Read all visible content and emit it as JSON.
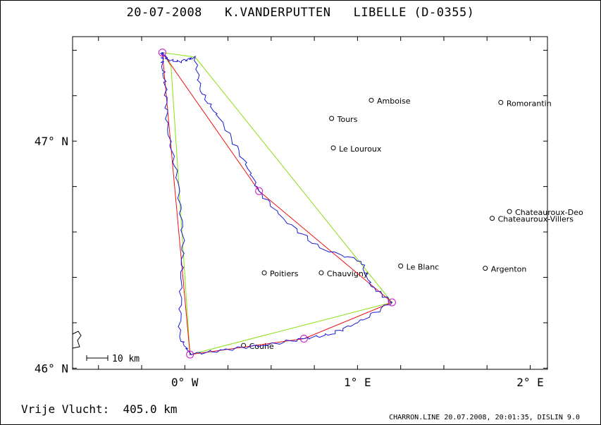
{
  "header": {
    "date": "20-07-2008",
    "pilot": "K.VANDERPUTTEN",
    "glider": "LIBELLE (D-0355)"
  },
  "axes": {
    "y_ticks": [
      {
        "value": 46,
        "label": "46° N"
      },
      {
        "value": 47,
        "label": "47° N"
      }
    ],
    "x_ticks": [
      {
        "value": 0,
        "label": "0° W"
      },
      {
        "value": 1,
        "label": "1° E"
      },
      {
        "value": 2,
        "label": "2° E"
      }
    ]
  },
  "scale_bar": {
    "label": "10 km"
  },
  "towns": [
    {
      "name": "Amboise",
      "lon": 1.08,
      "lat": 47.18
    },
    {
      "name": "Romorantin",
      "lon": 1.83,
      "lat": 47.17
    },
    {
      "name": "Tours",
      "lon": 0.85,
      "lat": 47.1
    },
    {
      "name": "Le Louroux",
      "lon": 0.86,
      "lat": 46.97
    },
    {
      "name": "Chateauroux-Deo",
      "lon": 1.88,
      "lat": 46.69
    },
    {
      "name": "Chateauroux-Villers",
      "lon": 1.78,
      "lat": 46.66
    },
    {
      "name": "Le Blanc",
      "lon": 1.25,
      "lat": 46.45
    },
    {
      "name": "Argenton",
      "lon": 1.74,
      "lat": 46.44
    },
    {
      "name": "Poitiers",
      "lon": 0.46,
      "lat": 46.42
    },
    {
      "name": "Chauvigny",
      "lon": 0.79,
      "lat": 46.42
    },
    {
      "name": "Couhe",
      "lon": 0.34,
      "lat": 46.1
    }
  ],
  "turnpoints": [
    {
      "lon": -0.13,
      "lat": 47.39
    },
    {
      "lon": 0.43,
      "lat": 46.78
    },
    {
      "lon": 1.2,
      "lat": 46.29
    },
    {
      "lon": 0.69,
      "lat": 46.13
    },
    {
      "lon": 0.03,
      "lat": 46.06
    }
  ],
  "colors": {
    "track": "#1a1ad8",
    "task_line": "#ee1010",
    "optimized_line": "#88e010",
    "turnpoint": "#cc10cc"
  },
  "footer": {
    "distance_label": "Vrije Vlucht:",
    "distance_value": "405.0 km",
    "program_info": "CHARRON.LINE 20.07.2008, 20:01:35, DISLIN 9.0"
  }
}
